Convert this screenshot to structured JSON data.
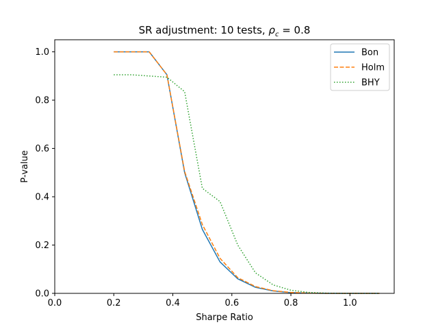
{
  "chart_data": {
    "type": "line",
    "title_main": "SR adjustment: 10 tests, ",
    "title_rho": "ρ",
    "title_sub": "c",
    "title_tail": " = 0.8",
    "xlabel": "Sharpe Ratio",
    "ylabel": "P-value",
    "xlim": [
      0.0,
      1.15
    ],
    "ylim": [
      0.0,
      1.05
    ],
    "xticks": [
      0.0,
      0.2,
      0.4,
      0.6,
      0.8,
      1.0
    ],
    "xtick_labels": [
      "0.0",
      "0.2",
      "0.4",
      "0.6",
      "0.8",
      "1.0"
    ],
    "yticks": [
      0.0,
      0.2,
      0.4,
      0.6,
      0.8,
      1.0
    ],
    "ytick_labels": [
      "0.0",
      "0.2",
      "0.4",
      "0.6",
      "0.8",
      "1.0"
    ],
    "grid": false,
    "legend_position": "top-right",
    "x": [
      0.2,
      0.26,
      0.32,
      0.38,
      0.44,
      0.5,
      0.56,
      0.62,
      0.68,
      0.74,
      0.8,
      0.86,
      0.92,
      0.98,
      1.04,
      1.1
    ],
    "series": [
      {
        "name": "Bon",
        "color": "#1f77b4",
        "style": "solid",
        "values": [
          1.0,
          1.0,
          1.0,
          0.905,
          0.5,
          0.265,
          0.13,
          0.06,
          0.025,
          0.01,
          0.003,
          0.001,
          0.0,
          0.0,
          0.0,
          0.0
        ]
      },
      {
        "name": "Holm",
        "color": "#ff7f0e",
        "style": "dashed",
        "values": [
          1.0,
          1.0,
          1.0,
          0.905,
          0.505,
          0.285,
          0.145,
          0.065,
          0.028,
          0.011,
          0.004,
          0.001,
          0.0,
          0.0,
          0.0,
          0.0
        ]
      },
      {
        "name": "BHY",
        "color": "#2ca02c",
        "style": "dotted",
        "values": [
          0.905,
          0.905,
          0.9,
          0.895,
          0.835,
          0.435,
          0.38,
          0.2,
          0.085,
          0.035,
          0.013,
          0.004,
          0.001,
          0.0,
          0.0,
          0.0
        ]
      }
    ]
  }
}
